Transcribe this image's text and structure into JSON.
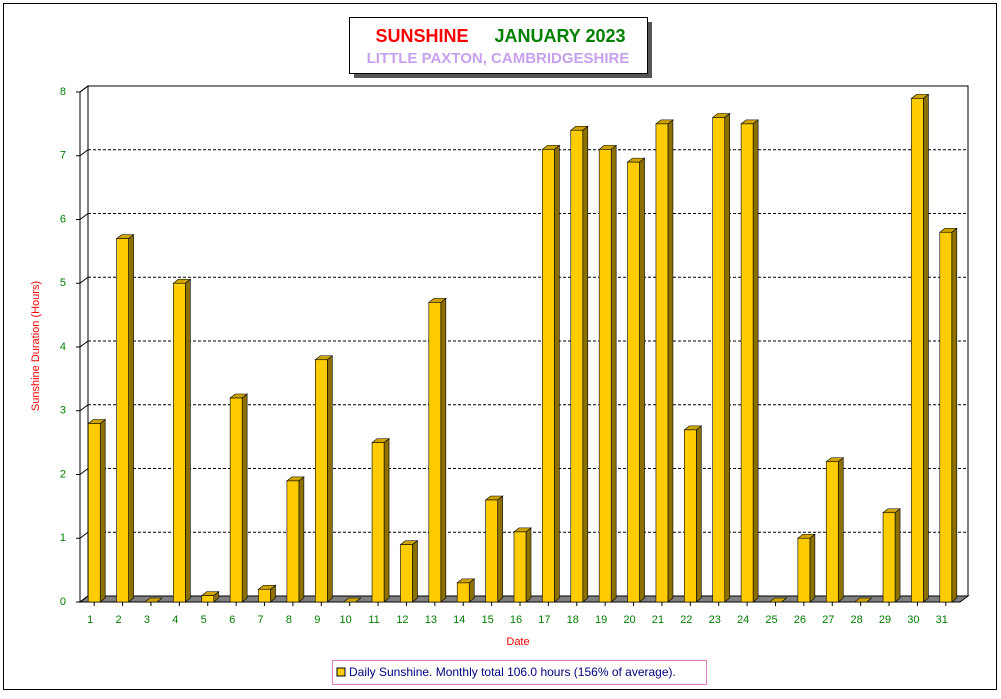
{
  "chart_data": {
    "type": "bar3d",
    "title": "SUNSHINE",
    "title_color": "#ff0000",
    "period": "JANUARY 2023",
    "period_color": "#008000",
    "subtitle": "LITTLE PAXTON, CAMBRIDGESHIRE",
    "subtitle_color": "#c8a0f0",
    "x_label": "Date",
    "y_label": "Sunshine Duration (Hours)",
    "categories": [
      "1",
      "2",
      "3",
      "4",
      "5",
      "6",
      "7",
      "8",
      "9",
      "10",
      "11",
      "12",
      "13",
      "14",
      "15",
      "16",
      "17",
      "18",
      "19",
      "20",
      "21",
      "22",
      "23",
      "24",
      "25",
      "26",
      "27",
      "28",
      "29",
      "30",
      "31"
    ],
    "series": [
      {
        "name": "Daily Sunshine. Monthly total 106.0 hours (156% of average).",
        "color": "#ffcc00",
        "values": [
          2.8,
          5.7,
          0,
          5.0,
          0.1,
          3.2,
          0.2,
          1.9,
          3.8,
          0,
          2.5,
          0.9,
          4.7,
          0.3,
          1.6,
          1.1,
          7.1,
          7.4,
          7.1,
          6.9,
          7.5,
          2.7,
          7.6,
          7.5,
          0,
          1.0,
          2.2,
          0,
          1.4,
          7.9,
          5.8
        ]
      }
    ],
    "ylim": [
      0,
      8
    ],
    "yticks": [
      0,
      1,
      2,
      3,
      4,
      5,
      6,
      7,
      8
    ],
    "grid": true
  }
}
